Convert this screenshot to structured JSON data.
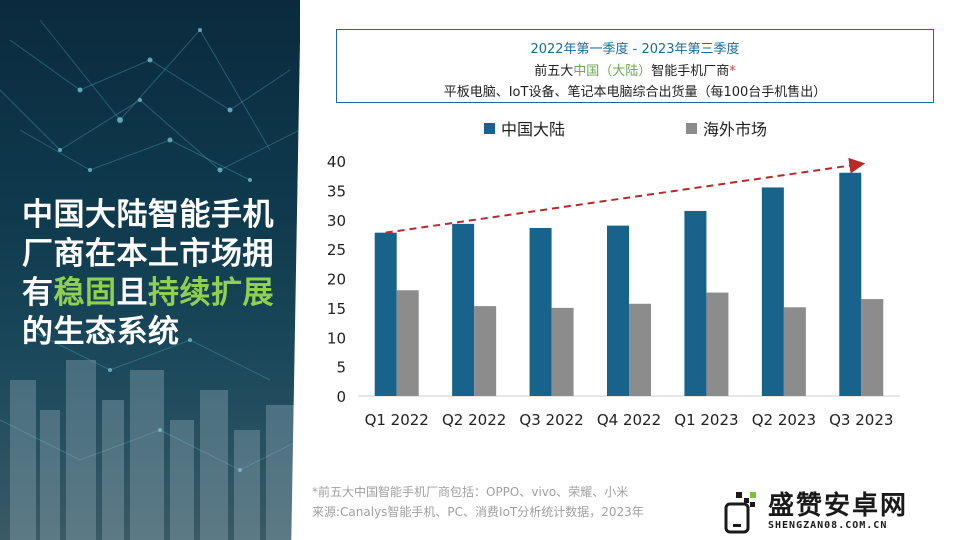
{
  "headline": {
    "line1": "中国大陆智能手机",
    "line2": "厂商在本土市场拥",
    "line3_a": "有",
    "line3_b": "稳固",
    "line3_c": "且",
    "line3_d": "持续扩展",
    "line4": "的生态系统"
  },
  "title_box": {
    "period": "2022年第一季度 - 2023年第三季度",
    "subtitle_a": "前五大",
    "subtitle_b": "中国（大陆）",
    "subtitle_c": "智能手机厂商",
    "subtitle_star": "*",
    "metric": "平板电脑、IoT设备、笔记本电脑综合出货量（每100台手机售出）"
  },
  "footnote": {
    "line1": "*前五大中国智能手机厂商包括：OPPO、vivo、荣耀、小米",
    "line2": "来源:Canalys智能手机、PC、消费IoT分析统计数据，2023年"
  },
  "watermark": {
    "title": "盛赞安卓网",
    "url": "SHENGZAN08.COM.CN"
  },
  "colors": {
    "domestic": "#17638c",
    "overseas": "#8c8c8c",
    "trend": "#b72a2a",
    "accent_green": "#8fd14f"
  },
  "chart_data": {
    "type": "bar",
    "categories": [
      "Q1 2022",
      "Q2 2022",
      "Q3 2022",
      "Q4 2022",
      "Q1 2023",
      "Q2 2023",
      "Q3 2023"
    ],
    "series": [
      {
        "name": "中国大陆",
        "values": [
          27.8,
          29.3,
          28.6,
          29.0,
          31.5,
          35.5,
          38.0
        ]
      },
      {
        "name": "海外市场",
        "values": [
          18.0,
          15.3,
          15.0,
          15.7,
          17.6,
          15.1,
          16.5
        ]
      }
    ],
    "ylim": [
      0,
      40
    ],
    "yticks": [
      0,
      5,
      10,
      15,
      20,
      25,
      30,
      35,
      40
    ],
    "trend": {
      "from": 27.8,
      "to": 39.5
    },
    "legend": "top",
    "grid": false
  }
}
